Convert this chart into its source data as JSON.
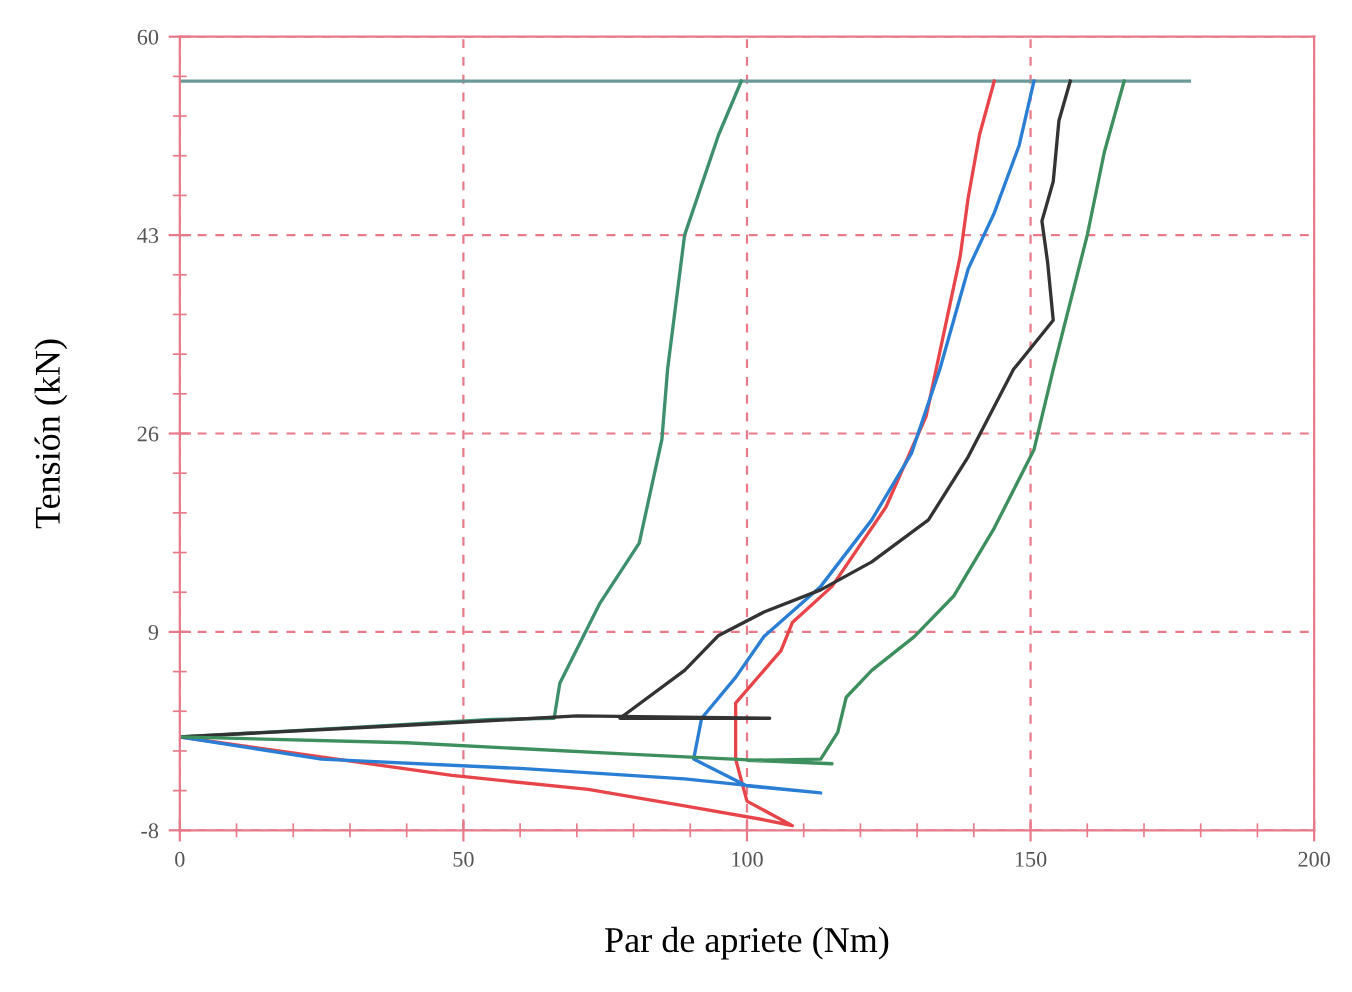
{
  "chart_data": {
    "type": "line",
    "xlabel": "Par de apriete (Nm)",
    "ylabel": "Tensión (kN)",
    "xlim": [
      0,
      200
    ],
    "xticks": [
      0,
      50,
      100,
      150,
      200
    ],
    "ylim": [
      -8,
      60
    ],
    "yticks": [
      -8,
      9,
      26,
      43,
      60
    ],
    "grid": true,
    "marker": "none",
    "line_style": "solid",
    "series": [
      {
        "color": "#6a9a9a",
        "x": [
          0,
          178
        ],
        "values": [
          56.2,
          56.2
        ]
      },
      {
        "color": "#3d8f6e",
        "x": [
          0,
          30,
          55,
          66,
          67,
          74,
          81,
          85,
          86,
          89,
          95,
          99
        ],
        "values": [
          0,
          0.8,
          1.5,
          1.6,
          4.6,
          11.4,
          16.6,
          25.5,
          31.5,
          43,
          51.6,
          56.2
        ]
      },
      {
        "color": "#e8454a",
        "x": [
          0,
          48,
          72,
          89,
          103,
          108,
          100,
          98,
          98,
          106,
          108,
          115,
          124.5,
          131.6,
          137.6,
          139,
          141,
          143.6
        ],
        "values": [
          0,
          -3.3,
          -4.5,
          -5.9,
          -7.1,
          -7.6,
          -5.5,
          -1.9,
          2.9,
          7.4,
          9.8,
          12.9,
          19.7,
          27.5,
          41.2,
          46.2,
          51.6,
          56.2
        ]
      },
      {
        "color": "#2a7fd4",
        "x": [
          0,
          25,
          60,
          89,
          113,
          100,
          90.6,
          92,
          98,
          103,
          113,
          122,
          129,
          134,
          139,
          143.6,
          148,
          150.6
        ],
        "values": [
          0,
          -1.9,
          -2.7,
          -3.6,
          -4.8,
          -4.2,
          -1.9,
          1.6,
          5.1,
          8.6,
          12.9,
          18.6,
          24.3,
          31.5,
          40.1,
          44.9,
          50.7,
          56.2
        ]
      },
      {
        "color": "#333333",
        "x": [
          0,
          40,
          70,
          104,
          77.6,
          89,
          95,
          103,
          113,
          122,
          132,
          139,
          147,
          154,
          153,
          152,
          154,
          155,
          157
        ],
        "values": [
          0,
          1,
          1.8,
          1.6,
          1.6,
          5.7,
          8.7,
          10.7,
          12.6,
          15,
          18.6,
          24,
          31.5,
          35.7,
          40.7,
          44.2,
          47.6,
          52.8,
          56.2
        ]
      },
      {
        "color": "#3d8f5e",
        "x": [
          0,
          40,
          80,
          115,
          100,
          113,
          116,
          117.5,
          122,
          129.5,
          136.5,
          143.6,
          150.6,
          154,
          160,
          163,
          166.5
        ],
        "values": [
          0,
          -0.5,
          -1.5,
          -2.3,
          -2,
          -1.9,
          0.4,
          3.4,
          5.7,
          8.6,
          12.1,
          17.9,
          24.6,
          31.5,
          43,
          50.1,
          56.2
        ]
      }
    ]
  }
}
